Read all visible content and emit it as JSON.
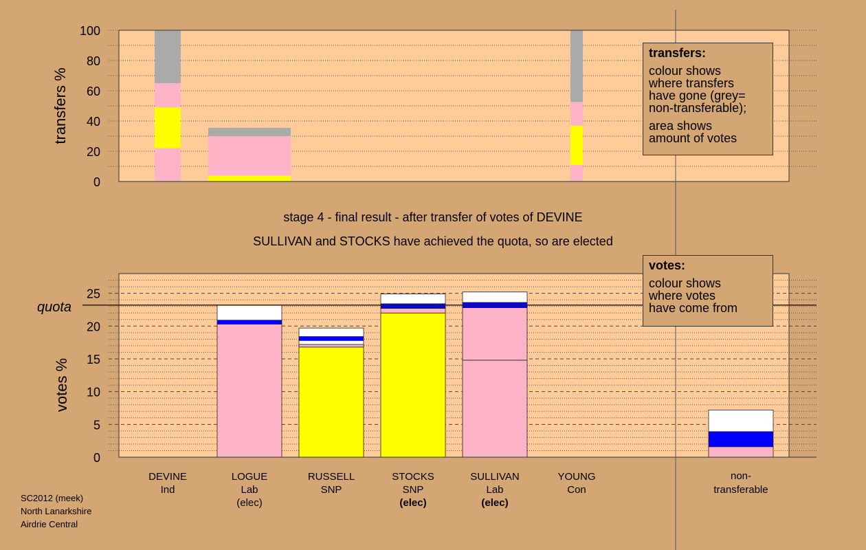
{
  "chart_data": [
    {
      "type": "bar",
      "stacked": true,
      "ylabel": "transfers %",
      "ylim": [
        0,
        100
      ],
      "yticks": [
        0,
        20,
        40,
        60,
        80,
        100
      ],
      "grid": true,
      "bars": [
        {
          "category": "DEVINE",
          "segments": [
            {
              "color": "#ffb3c6",
              "value": 22
            },
            {
              "color": "#ffff00",
              "value": 27
            },
            {
              "color": "#ffb3c6",
              "value": 16
            },
            {
              "color": "#aaaaaa",
              "value": 35
            }
          ]
        },
        {
          "category": "LOGUE",
          "segments": [
            {
              "color": "#ffff00",
              "value": 4
            },
            {
              "color": "#ffb3c6",
              "value": 26
            },
            {
              "color": "#aaaaaa",
              "value": 5.5
            }
          ]
        },
        {
          "category": "YOUNG",
          "segments": [
            {
              "color": "#ffb3c6",
              "value": 11
            },
            {
              "color": "#ffff00",
              "value": 26
            },
            {
              "color": "#ffb3c6",
              "value": 15.5
            },
            {
              "color": "#aaaaaa",
              "value": 47.5
            }
          ]
        }
      ]
    },
    {
      "type": "bar",
      "stacked": true,
      "ylabel": "votes %",
      "ylim": [
        0,
        28
      ],
      "yticks": [
        0,
        5,
        10,
        15,
        20,
        25
      ],
      "quota": 23.2,
      "quota_label": "quota",
      "grid": true,
      "bars": [
        {
          "category": "LOGUE",
          "segments": [
            {
              "color": "#ffb3c6",
              "value": 20.3
            },
            {
              "color": "#0000ff",
              "value": 0.6
            },
            {
              "color": "#ffffff",
              "value": 2.3
            }
          ]
        },
        {
          "category": "RUSSELL",
          "segments": [
            {
              "color": "#ffff00",
              "value": 16.8
            },
            {
              "color": "#ffb3c6",
              "value": 0.4
            },
            {
              "color": "#ffffff",
              "value": 0.6
            },
            {
              "color": "#0000ff",
              "value": 0.6
            },
            {
              "color": "#ffffff",
              "value": 1.3
            }
          ]
        },
        {
          "category": "STOCKS",
          "segments": [
            {
              "color": "#ffff00",
              "value": 22.0
            },
            {
              "color": "#ffb3c6",
              "value": 0.7
            },
            {
              "color": "#0000ff",
              "value": 0.7
            },
            {
              "color": "#ffffff",
              "value": 1.5
            }
          ]
        },
        {
          "category": "SULLIVAN",
          "segments": [
            {
              "color": "#ffb3c6",
              "value": 14.8
            },
            {
              "color": "#ffb3c6",
              "value": 8.0
            },
            {
              "color": "#0000ff",
              "value": 0.8
            },
            {
              "color": "#ffffff",
              "value": 1.6
            }
          ]
        },
        {
          "category": "non-transferable",
          "segments": [
            {
              "color": "#ffb3c6",
              "value": 1.6
            },
            {
              "color": "#0000ff",
              "value": 2.3
            },
            {
              "color": "#ffffff",
              "value": 3.3
            }
          ]
        }
      ]
    }
  ],
  "candidates": [
    {
      "name": "DEVINE",
      "party": "Ind",
      "status": ""
    },
    {
      "name": "LOGUE",
      "party": "Lab",
      "status": "(elec)"
    },
    {
      "name": "RUSSELL",
      "party": "SNP",
      "status": ""
    },
    {
      "name": "STOCKS",
      "party": "SNP",
      "status": "(elec)"
    },
    {
      "name": "SULLIVAN",
      "party": "Lab",
      "status": "(elec)"
    },
    {
      "name": "YOUNG",
      "party": "Con",
      "status": ""
    }
  ],
  "nontransferable_label": [
    "non-",
    "transferable"
  ],
  "title_line1": "stage 4 - final result - after transfer of votes of DEVINE",
  "title_line2": "SULLIVAN and STOCKS have achieved the quota, so are elected",
  "legend_transfers": {
    "heading": "transfers:",
    "lines1": [
      "colour shows",
      "where transfers",
      "have gone (grey=",
      "non-transferable);"
    ],
    "lines2": [
      "area shows",
      "amount of votes"
    ]
  },
  "legend_votes": {
    "heading": "votes:",
    "lines1": [
      "colour shows",
      "where votes",
      "have come from"
    ]
  },
  "source": {
    "line1": "SC2012 (meek)",
    "line2": "North Lanarkshire",
    "line3": "Airdrie Central"
  },
  "colors": {
    "background": "#d4a673",
    "plot": "#ffcc99",
    "pink": "#ffb3c6",
    "yellow": "#ffff00",
    "blue": "#0000ff",
    "grey": "#aaaaaa"
  }
}
